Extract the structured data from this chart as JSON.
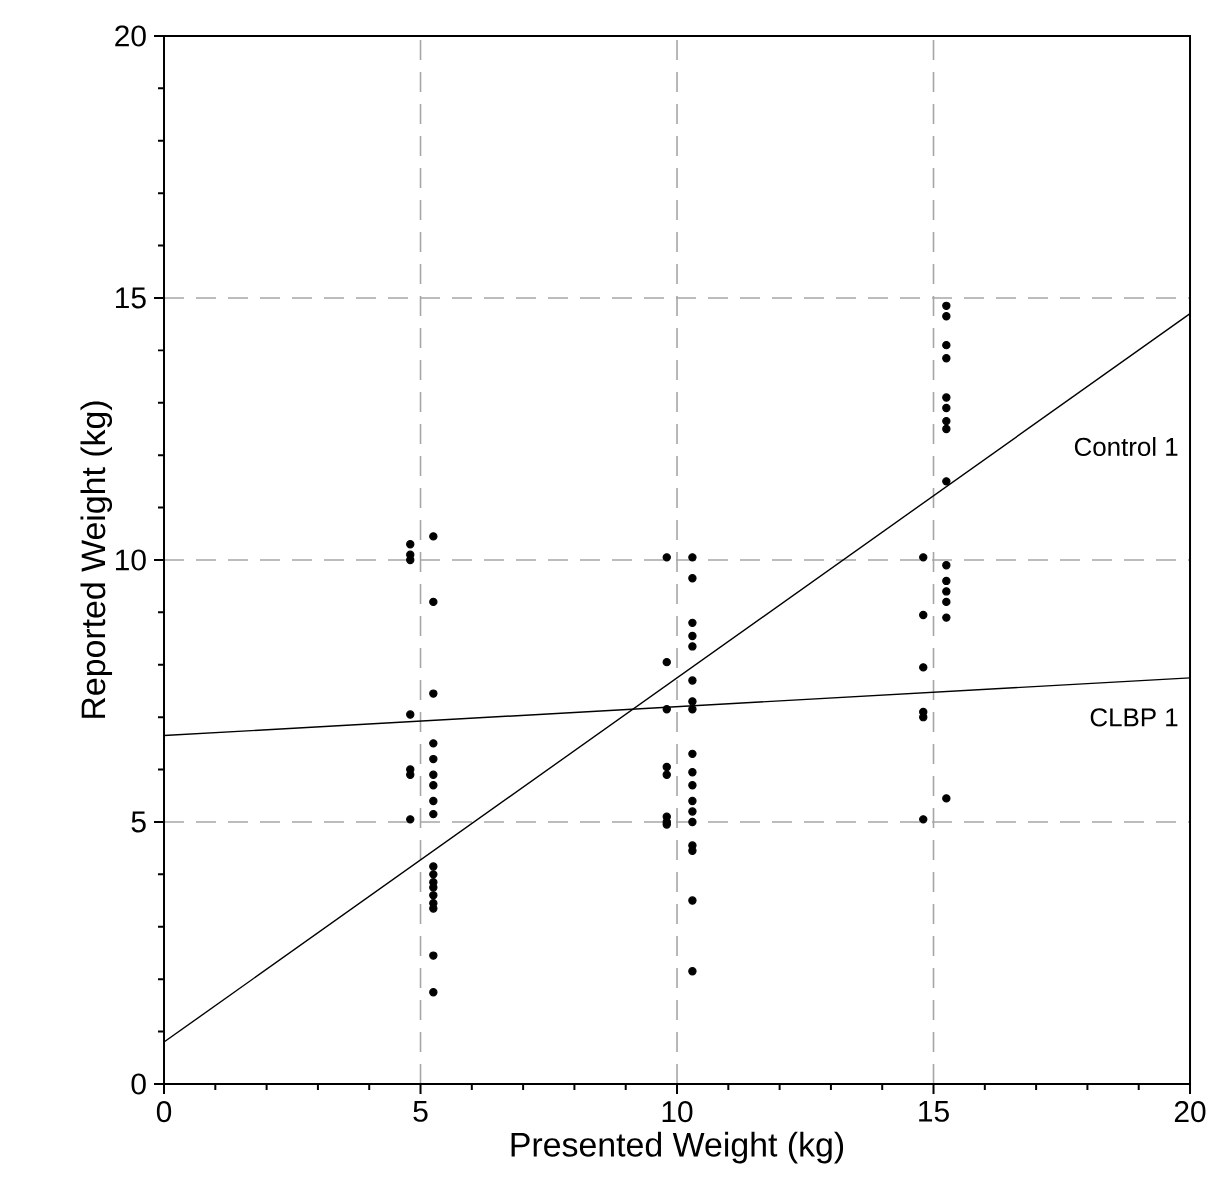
{
  "chart_data": {
    "type": "scatter",
    "xlabel": "Presented Weight (kg)",
    "ylabel": "Reported Weight (kg)",
    "xlim": [
      0,
      20
    ],
    "ylim": [
      0,
      20
    ],
    "xticks": [
      0,
      5,
      10,
      15,
      20
    ],
    "yticks": [
      0,
      5,
      10,
      15,
      20
    ],
    "grid": true,
    "legend": false,
    "series": [
      {
        "marker": "circle",
        "color": "#000000",
        "x": [
          4.8,
          4.8,
          4.8,
          4.8,
          4.8,
          4.8,
          4.8
        ],
        "values": [
          10.3,
          10.1,
          10.0,
          7.05,
          6.0,
          5.9,
          5.05
        ]
      },
      {
        "marker": "circle",
        "color": "#000000",
        "x": [
          5.25,
          5.25,
          5.25,
          5.25,
          5.25,
          5.25,
          5.25,
          5.25,
          5.25,
          5.25,
          5.25,
          5.25,
          5.25,
          5.25,
          5.25,
          5.25,
          5.25,
          5.25
        ],
        "values": [
          10.45,
          9.2,
          7.45,
          6.5,
          6.2,
          5.9,
          5.7,
          5.4,
          5.15,
          4.15,
          4.0,
          3.85,
          3.75,
          3.6,
          3.45,
          3.35,
          2.45,
          1.75
        ]
      },
      {
        "marker": "circle",
        "color": "#000000",
        "x": [
          9.8,
          9.8,
          9.8,
          9.8,
          9.8,
          9.8,
          9.8,
          9.8
        ],
        "values": [
          10.05,
          8.05,
          7.15,
          6.05,
          5.9,
          5.1,
          5.0,
          4.95
        ]
      },
      {
        "marker": "circle",
        "color": "#000000",
        "x": [
          10.3,
          10.3,
          10.3,
          10.3,
          10.3,
          10.3,
          10.3,
          10.3,
          10.3,
          10.3,
          10.3,
          10.3,
          10.3,
          10.3,
          10.3,
          10.3,
          10.3,
          10.3
        ],
        "values": [
          10.05,
          9.65,
          8.8,
          8.55,
          8.35,
          7.7,
          7.3,
          7.15,
          6.3,
          5.95,
          5.7,
          5.4,
          5.2,
          5.0,
          4.55,
          4.45,
          3.5,
          2.15
        ]
      },
      {
        "marker": "circle",
        "color": "#000000",
        "x": [
          14.8,
          14.8,
          14.8,
          14.8,
          14.8,
          14.8
        ],
        "values": [
          10.05,
          8.95,
          7.95,
          7.1,
          7.0,
          5.05
        ]
      },
      {
        "marker": "circle",
        "color": "#000000",
        "x": [
          15.25,
          15.25,
          15.25,
          15.25,
          15.25,
          15.25,
          15.25,
          15.25,
          15.25,
          15.25,
          15.25,
          15.25,
          15.25,
          15.25,
          15.25
        ],
        "values": [
          14.85,
          14.65,
          14.1,
          13.85,
          13.1,
          12.9,
          12.65,
          12.5,
          11.5,
          9.9,
          9.6,
          9.4,
          9.2,
          8.9,
          5.45
        ]
      },
      {
        "type": "line",
        "marker": "none",
        "name": "Control 1",
        "color": "#000000",
        "x": [
          0,
          20
        ],
        "values": [
          0.8,
          14.7
        ]
      },
      {
        "type": "line",
        "marker": "none",
        "name": "CLBP 1",
        "color": "#000000",
        "x": [
          0,
          20
        ],
        "values": [
          6.65,
          7.75
        ]
      }
    ]
  }
}
